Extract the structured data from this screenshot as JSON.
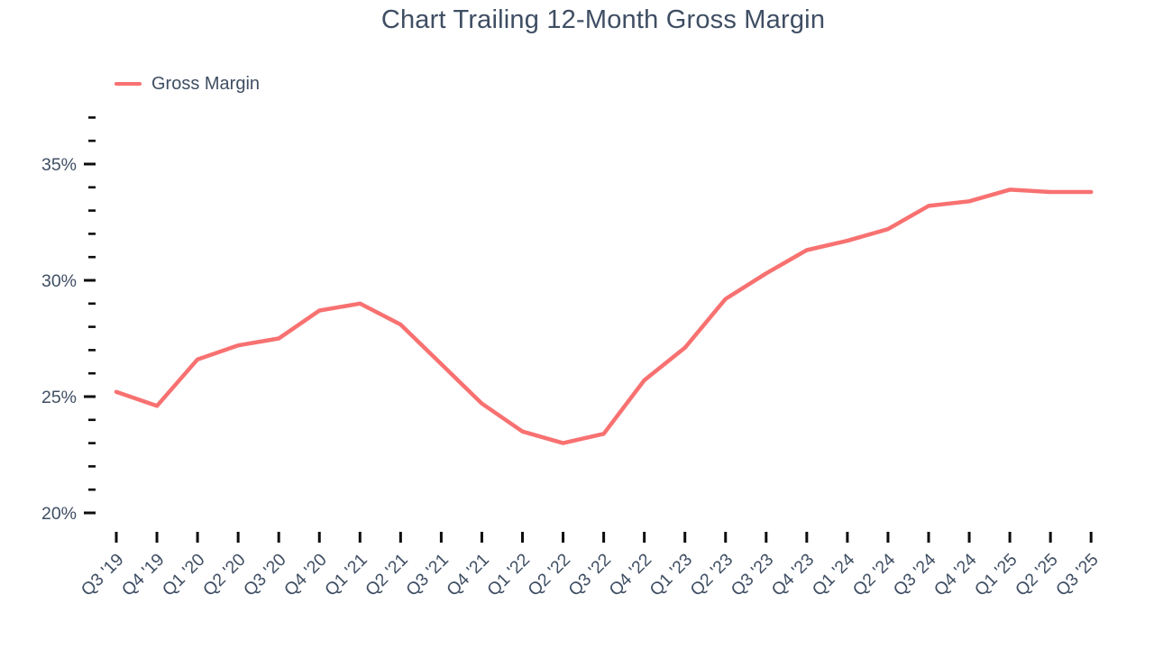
{
  "chart": {
    "title": "Chart Trailing 12-Month Gross Margin"
  },
  "chart_data": {
    "type": "line",
    "title": "Chart Trailing 12-Month Gross Margin",
    "categories": [
      "Q3 '19",
      "Q4 '19",
      "Q1 '20",
      "Q2 '20",
      "Q3 '20",
      "Q4 '20",
      "Q1 '21",
      "Q2 '21",
      "Q3 '21",
      "Q4 '21",
      "Q1 '22",
      "Q2 '22",
      "Q3 '22",
      "Q4 '22",
      "Q1 '23",
      "Q2 '23",
      "Q3 '23",
      "Q4 '23",
      "Q1 '24",
      "Q2 '24",
      "Q3 '24",
      "Q4 '24",
      "Q1 '25",
      "Q2 '25",
      "Q3 '25"
    ],
    "series": [
      {
        "name": "Gross Margin",
        "color": "#f87171",
        "values": [
          25.2,
          24.6,
          26.6,
          27.2,
          27.5,
          28.7,
          29.0,
          28.1,
          26.4,
          24.7,
          23.5,
          23.0,
          23.4,
          25.7,
          27.1,
          29.2,
          30.3,
          31.3,
          31.7,
          32.2,
          33.2,
          33.4,
          33.9,
          33.8,
          33.8
        ]
      }
    ],
    "xlabel": "",
    "ylabel": "",
    "y_axis": {
      "unit": "%",
      "range": [
        20,
        37.3
      ],
      "major_ticks": [
        35,
        30,
        25,
        20
      ],
      "minor_ticks": [
        37,
        36,
        34,
        33,
        32,
        31,
        29,
        28,
        27,
        26,
        24,
        23,
        22,
        21
      ],
      "tick_labels": [
        "35%",
        "30%",
        "25%",
        "20%"
      ]
    },
    "x_axis": {
      "label_rotation": -45
    },
    "grid": false,
    "legend_position": "top-left",
    "colors": {
      "line": "#f87171",
      "text": "#3f4e63",
      "tick": "#0d0d0d",
      "background": "#ffffff"
    }
  }
}
